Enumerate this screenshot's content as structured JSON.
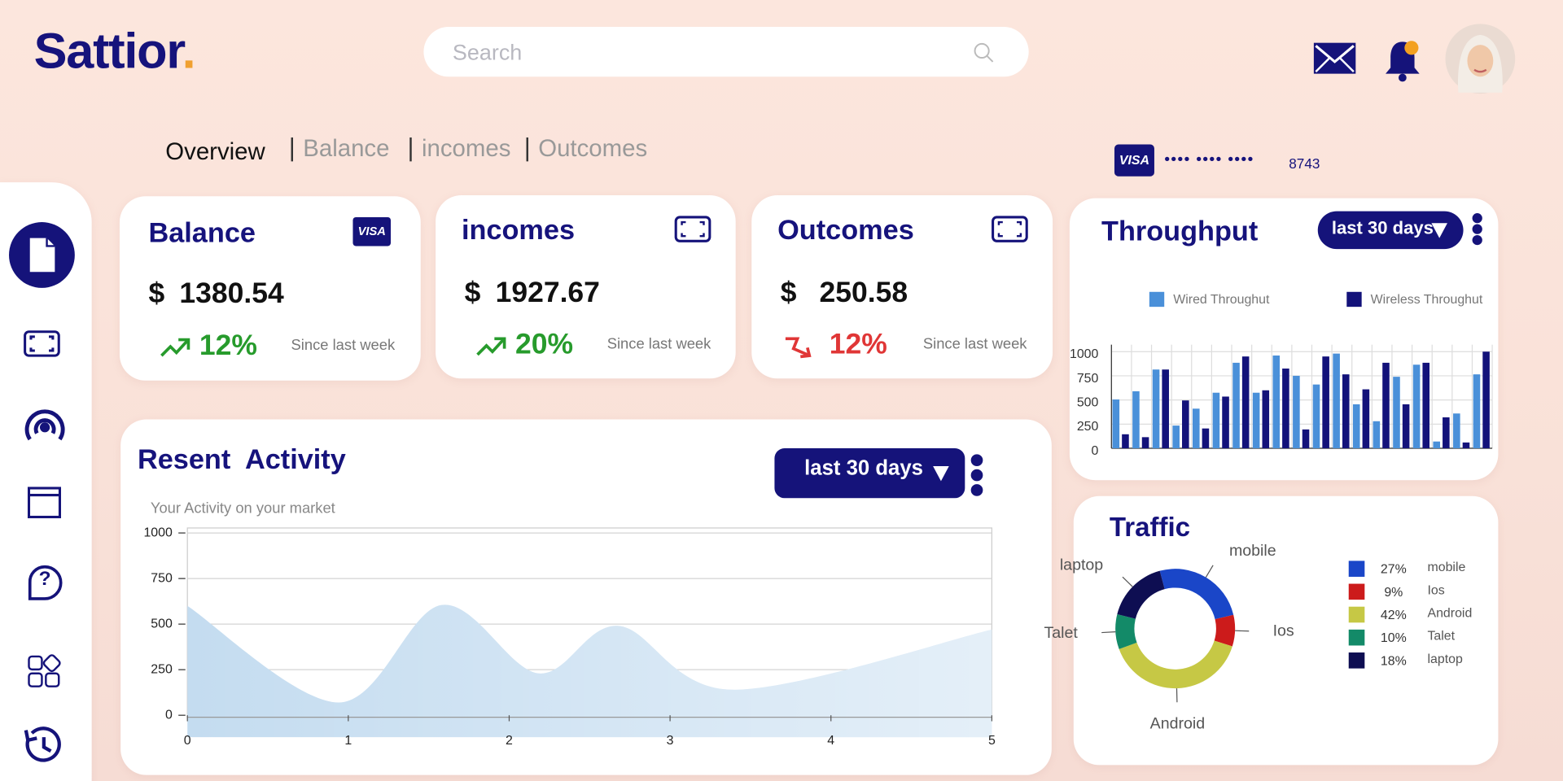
{
  "header": {
    "brand": "Sattior",
    "brand_dot": ".",
    "search_placeholder": "Search"
  },
  "tabs": [
    "Overview",
    "Balance",
    "incomes",
    "Outcomes"
  ],
  "card": {
    "brand": "VISA",
    "masked": "•••• •••• ••••",
    "last4": "8743"
  },
  "stats": [
    {
      "title": "Balance",
      "currency": "$",
      "amount": "1380.54",
      "change": "12%",
      "trend": "up",
      "note": "Since last week"
    },
    {
      "title": "incomes",
      "currency": "$",
      "amount": "1927.67",
      "change": "20%",
      "trend": "up",
      "note": "Since last week"
    },
    {
      "title": "Outcomes",
      "currency": "$",
      "amount": "250.58",
      "change": "12%",
      "trend": "down",
      "note": "Since last week"
    }
  ],
  "chart_data": [
    {
      "type": "area",
      "title": "Resent  Activity",
      "subtitle": "Your Activity on your market",
      "control": "last 30 days",
      "x": [
        0,
        0.94,
        1.58,
        2.18,
        2.68,
        3.39,
        5
      ],
      "series": [
        {
          "color": "#c4dcf0",
          "values": [
            600,
            70,
            605,
            230,
            490,
            140,
            470
          ]
        }
      ],
      "xlim": [
        0,
        5
      ],
      "xticks": [
        0,
        1,
        2,
        3,
        4,
        5
      ],
      "ylim": [
        0,
        1000
      ],
      "yticks": [
        0,
        250,
        500,
        750,
        1000
      ],
      "grid": true
    },
    {
      "type": "bar",
      "title": "Throughput",
      "control": "last 30 days",
      "categories": [
        null,
        null,
        null,
        null,
        null,
        null,
        null,
        null,
        null,
        null,
        null,
        null,
        null,
        null,
        null,
        null,
        null,
        null,
        null
      ],
      "series": [
        {
          "name": "Wired Throughut",
          "color": "#4a90d9",
          "values": [
            505,
            590,
            815,
            235,
            410,
            575,
            885,
            575,
            960,
            750,
            660,
            980,
            455,
            280,
            740,
            865,
            70,
            360,
            765
          ]
        },
        {
          "name": "Wireless Throughut",
          "color": "#13127a",
          "values": [
            145,
            115,
            815,
            495,
            205,
            535,
            950,
            600,
            825,
            195,
            950,
            765,
            610,
            885,
            455,
            885,
            320,
            60,
            1000
          ]
        }
      ],
      "ylim": [
        0,
        1000
      ],
      "yticks": [
        0,
        250,
        500,
        750,
        1000
      ],
      "grid": true
    },
    {
      "type": "donut",
      "title": "Traffic",
      "categories": [
        "mobile",
        "Ios",
        "Android",
        "Talet",
        "laptop"
      ],
      "values": [
        27,
        9,
        42,
        10,
        18
      ],
      "value_labels": [
        "27%",
        "9%",
        "42%",
        "10%",
        "18%"
      ],
      "colors": [
        "#1a46c8",
        "#cc1b1b",
        "#c6c845",
        "#138a68",
        "#0e0e52"
      ]
    }
  ]
}
